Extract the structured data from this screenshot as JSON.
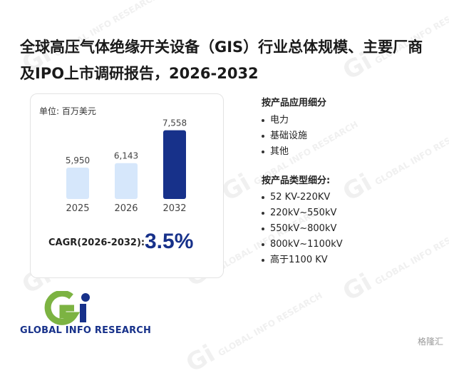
{
  "title": "全球高压气体绝缘开关设备（GIS）行业总体规模、主要厂商及IPO上市调研报告，2026-2032",
  "chart_data": {
    "type": "bar",
    "unit_label": "单位: 百万美元",
    "categories": [
      "2025",
      "2026",
      "2032"
    ],
    "values": [
      5950,
      6143,
      7558
    ],
    "value_labels": [
      "5,950",
      "6,143",
      "7,558"
    ],
    "bar_colors": [
      "#d6e7fb",
      "#d6e7fb",
      "#17318a"
    ],
    "cagr_label": "CAGR(2026-2032):",
    "cagr_value": "3.5%"
  },
  "segments": {
    "by_application": {
      "title": "按产品应用细分",
      "items": [
        "电力",
        "基础设施",
        "其他"
      ]
    },
    "by_type": {
      "title": "按产品类型细分:",
      "items": [
        "52 KV-220KV",
        "220kV~550kV",
        "550kV~800kV",
        "800kV~1100kV",
        "高于1100 KV"
      ]
    }
  },
  "logo": {
    "text": "GLOBAL INFO RESEARCH"
  },
  "watermark": "GLOBAL INFO RESEARCH",
  "corner_brand": "格隆汇",
  "colors": {
    "accent": "#17318a",
    "logo_green": "#7cb342",
    "bar_light": "#d6e7fb"
  }
}
